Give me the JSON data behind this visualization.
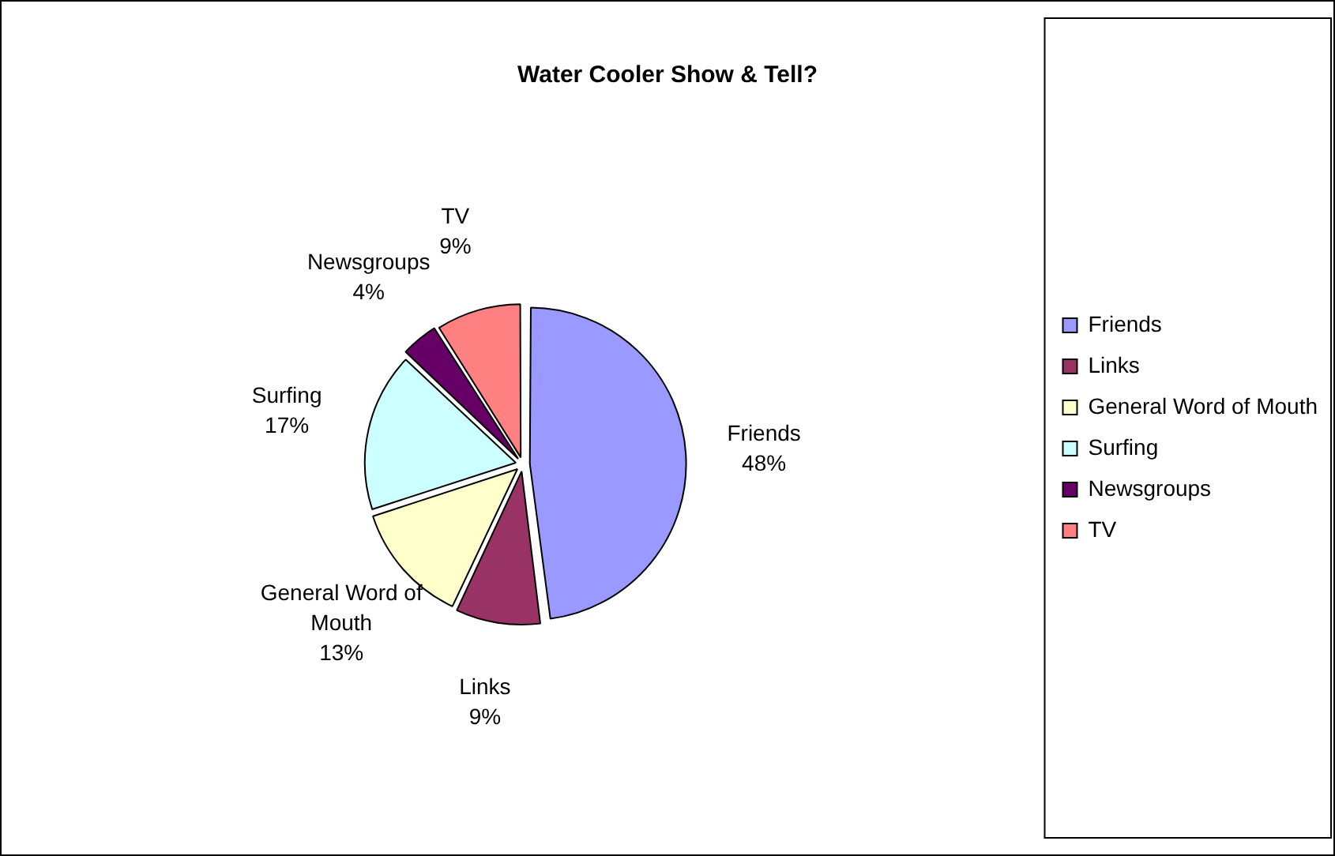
{
  "chart_data": {
    "type": "pie",
    "title": "Water Cooler Show & Tell?",
    "categories": [
      "Friends",
      "Links",
      "General Word of Mouth",
      "Surfing",
      "Newsgroups",
      "TV"
    ],
    "values": [
      48,
      9,
      13,
      17,
      4,
      9
    ],
    "colors": [
      "#9999ff",
      "#993366",
      "#ffffcc",
      "#ccffff",
      "#660066",
      "#ff8080"
    ],
    "value_labels": [
      "48%",
      "9%",
      "13%",
      "17%",
      "4%",
      "9%"
    ],
    "legend": "right"
  }
}
